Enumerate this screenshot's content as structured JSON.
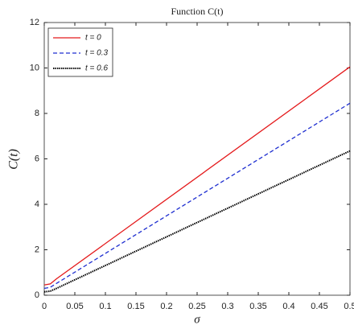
{
  "chart_data": {
    "type": "line",
    "title": "Function C(t)",
    "xlabel": "σ",
    "ylabel": "C(t)",
    "x": [
      0,
      0.01,
      0.02,
      0.5
    ],
    "series": [
      {
        "name": "t = 0",
        "color": "#e41a1c",
        "dash": "solid",
        "values": [
          0.45,
          0.5,
          0.72,
          10.05
        ]
      },
      {
        "name": "t = 0.3",
        "color": "#1f2fd0",
        "dash": "dashed",
        "values": [
          0.3,
          0.35,
          0.52,
          8.45
        ]
      },
      {
        "name": "t = 0.6",
        "color": "#000000",
        "dash": "dotted",
        "values": [
          0.15,
          0.18,
          0.3,
          6.35
        ]
      }
    ],
    "xlim": [
      0,
      0.5
    ],
    "xticks": [
      0,
      0.05,
      0.1,
      0.15,
      0.2,
      0.25,
      0.3,
      0.35,
      0.4,
      0.45,
      0.5
    ],
    "ylim": [
      0,
      12
    ],
    "yticks": [
      0,
      2,
      4,
      6,
      8,
      10,
      12
    ],
    "legend": "top-left",
    "grid": false
  }
}
